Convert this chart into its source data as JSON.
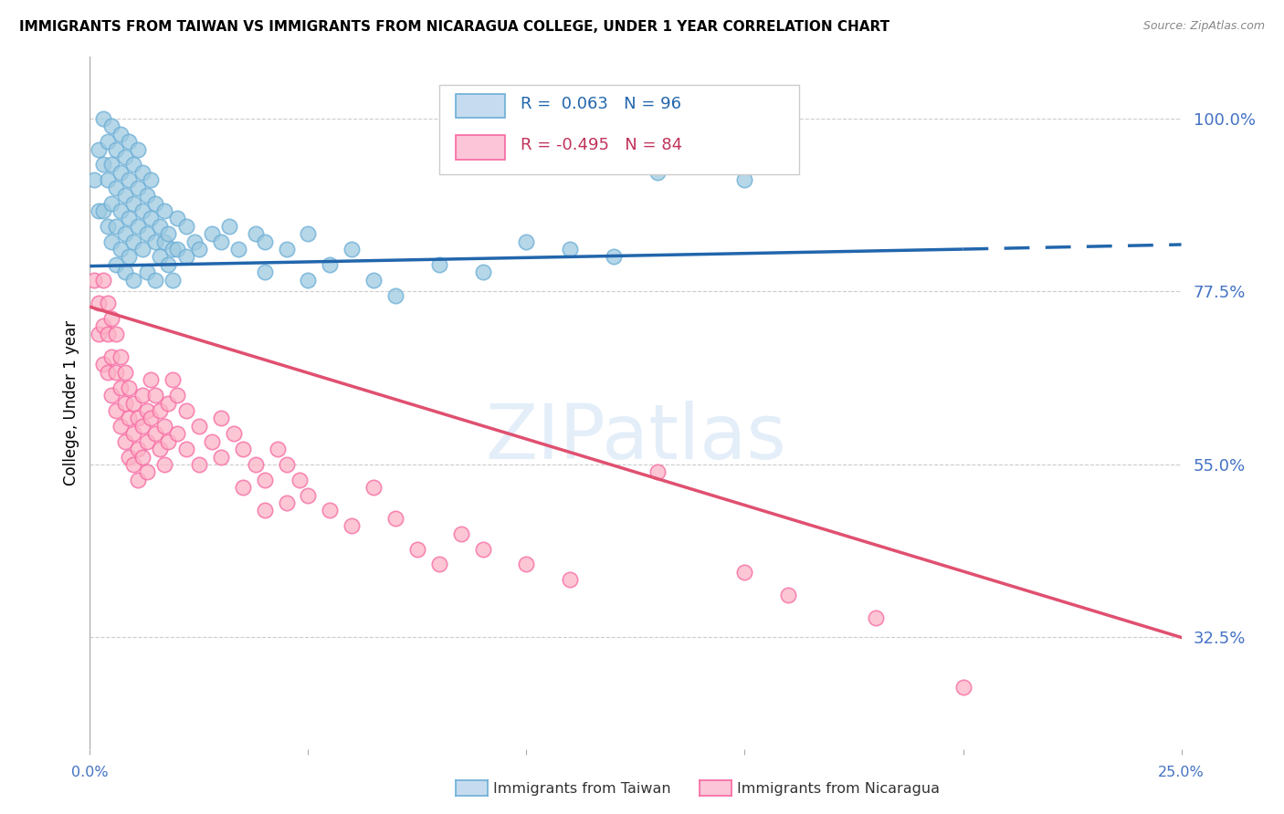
{
  "title": "IMMIGRANTS FROM TAIWAN VS IMMIGRANTS FROM NICARAGUA COLLEGE, UNDER 1 YEAR CORRELATION CHART",
  "source": "Source: ZipAtlas.com",
  "ylabel": "College, Under 1 year",
  "yticks": [
    0.325,
    0.55,
    0.775,
    1.0
  ],
  "ytick_labels": [
    "32.5%",
    "55.0%",
    "77.5%",
    "100.0%"
  ],
  "xmin": 0.0,
  "xmax": 0.25,
  "ymin": 0.18,
  "ymax": 1.08,
  "watermark": "ZIPatlas",
  "taiwan_color": "#9ecae1",
  "taiwan_edge_color": "#6baed6",
  "nicaragua_color": "#fbb4c7",
  "nicaragua_edge_color": "#f768a1",
  "taiwan_line_color": "#2166ac",
  "nicaragua_line_color": "#e05070",
  "taiwan_scatter": [
    [
      0.001,
      0.92
    ],
    [
      0.002,
      0.96
    ],
    [
      0.002,
      0.88
    ],
    [
      0.003,
      1.0
    ],
    [
      0.003,
      0.94
    ],
    [
      0.003,
      0.88
    ],
    [
      0.004,
      0.97
    ],
    [
      0.004,
      0.92
    ],
    [
      0.004,
      0.86
    ],
    [
      0.005,
      0.99
    ],
    [
      0.005,
      0.94
    ],
    [
      0.005,
      0.89
    ],
    [
      0.005,
      0.84
    ],
    [
      0.006,
      0.96
    ],
    [
      0.006,
      0.91
    ],
    [
      0.006,
      0.86
    ],
    [
      0.006,
      0.81
    ],
    [
      0.007,
      0.98
    ],
    [
      0.007,
      0.93
    ],
    [
      0.007,
      0.88
    ],
    [
      0.007,
      0.83
    ],
    [
      0.008,
      0.95
    ],
    [
      0.008,
      0.9
    ],
    [
      0.008,
      0.85
    ],
    [
      0.008,
      0.8
    ],
    [
      0.009,
      0.97
    ],
    [
      0.009,
      0.92
    ],
    [
      0.009,
      0.87
    ],
    [
      0.009,
      0.82
    ],
    [
      0.01,
      0.94
    ],
    [
      0.01,
      0.89
    ],
    [
      0.01,
      0.84
    ],
    [
      0.01,
      0.79
    ],
    [
      0.011,
      0.96
    ],
    [
      0.011,
      0.91
    ],
    [
      0.011,
      0.86
    ],
    [
      0.012,
      0.93
    ],
    [
      0.012,
      0.88
    ],
    [
      0.012,
      0.83
    ],
    [
      0.013,
      0.9
    ],
    [
      0.013,
      0.85
    ],
    [
      0.013,
      0.8
    ],
    [
      0.014,
      0.92
    ],
    [
      0.014,
      0.87
    ],
    [
      0.015,
      0.89
    ],
    [
      0.015,
      0.84
    ],
    [
      0.015,
      0.79
    ],
    [
      0.016,
      0.86
    ],
    [
      0.016,
      0.82
    ],
    [
      0.017,
      0.88
    ],
    [
      0.017,
      0.84
    ],
    [
      0.018,
      0.85
    ],
    [
      0.018,
      0.81
    ],
    [
      0.019,
      0.83
    ],
    [
      0.019,
      0.79
    ],
    [
      0.02,
      0.87
    ],
    [
      0.02,
      0.83
    ],
    [
      0.022,
      0.86
    ],
    [
      0.022,
      0.82
    ],
    [
      0.024,
      0.84
    ],
    [
      0.025,
      0.83
    ],
    [
      0.028,
      0.85
    ],
    [
      0.03,
      0.84
    ],
    [
      0.032,
      0.86
    ],
    [
      0.034,
      0.83
    ],
    [
      0.038,
      0.85
    ],
    [
      0.04,
      0.84
    ],
    [
      0.04,
      0.8
    ],
    [
      0.045,
      0.83
    ],
    [
      0.05,
      0.85
    ],
    [
      0.05,
      0.79
    ],
    [
      0.055,
      0.81
    ],
    [
      0.06,
      0.83
    ],
    [
      0.065,
      0.79
    ],
    [
      0.07,
      0.77
    ],
    [
      0.08,
      0.81
    ],
    [
      0.09,
      0.8
    ],
    [
      0.1,
      0.84
    ],
    [
      0.11,
      0.83
    ],
    [
      0.12,
      0.82
    ],
    [
      0.13,
      0.93
    ],
    [
      0.15,
      0.92
    ]
  ],
  "nicaragua_scatter": [
    [
      0.001,
      0.79
    ],
    [
      0.002,
      0.76
    ],
    [
      0.002,
      0.72
    ],
    [
      0.003,
      0.79
    ],
    [
      0.003,
      0.73
    ],
    [
      0.003,
      0.68
    ],
    [
      0.004,
      0.76
    ],
    [
      0.004,
      0.72
    ],
    [
      0.004,
      0.67
    ],
    [
      0.005,
      0.74
    ],
    [
      0.005,
      0.69
    ],
    [
      0.005,
      0.64
    ],
    [
      0.006,
      0.72
    ],
    [
      0.006,
      0.67
    ],
    [
      0.006,
      0.62
    ],
    [
      0.007,
      0.69
    ],
    [
      0.007,
      0.65
    ],
    [
      0.007,
      0.6
    ],
    [
      0.008,
      0.67
    ],
    [
      0.008,
      0.63
    ],
    [
      0.008,
      0.58
    ],
    [
      0.009,
      0.65
    ],
    [
      0.009,
      0.61
    ],
    [
      0.009,
      0.56
    ],
    [
      0.01,
      0.63
    ],
    [
      0.01,
      0.59
    ],
    [
      0.01,
      0.55
    ],
    [
      0.011,
      0.61
    ],
    [
      0.011,
      0.57
    ],
    [
      0.011,
      0.53
    ],
    [
      0.012,
      0.64
    ],
    [
      0.012,
      0.6
    ],
    [
      0.012,
      0.56
    ],
    [
      0.013,
      0.62
    ],
    [
      0.013,
      0.58
    ],
    [
      0.013,
      0.54
    ],
    [
      0.014,
      0.66
    ],
    [
      0.014,
      0.61
    ],
    [
      0.015,
      0.64
    ],
    [
      0.015,
      0.59
    ],
    [
      0.016,
      0.62
    ],
    [
      0.016,
      0.57
    ],
    [
      0.017,
      0.6
    ],
    [
      0.017,
      0.55
    ],
    [
      0.018,
      0.63
    ],
    [
      0.018,
      0.58
    ],
    [
      0.019,
      0.66
    ],
    [
      0.02,
      0.64
    ],
    [
      0.02,
      0.59
    ],
    [
      0.022,
      0.62
    ],
    [
      0.022,
      0.57
    ],
    [
      0.025,
      0.6
    ],
    [
      0.025,
      0.55
    ],
    [
      0.028,
      0.58
    ],
    [
      0.03,
      0.61
    ],
    [
      0.03,
      0.56
    ],
    [
      0.033,
      0.59
    ],
    [
      0.035,
      0.57
    ],
    [
      0.035,
      0.52
    ],
    [
      0.038,
      0.55
    ],
    [
      0.04,
      0.53
    ],
    [
      0.04,
      0.49
    ],
    [
      0.043,
      0.57
    ],
    [
      0.045,
      0.55
    ],
    [
      0.045,
      0.5
    ],
    [
      0.048,
      0.53
    ],
    [
      0.05,
      0.51
    ],
    [
      0.055,
      0.49
    ],
    [
      0.06,
      0.47
    ],
    [
      0.065,
      0.52
    ],
    [
      0.07,
      0.48
    ],
    [
      0.075,
      0.44
    ],
    [
      0.08,
      0.42
    ],
    [
      0.085,
      0.46
    ],
    [
      0.09,
      0.44
    ],
    [
      0.1,
      0.42
    ],
    [
      0.11,
      0.4
    ],
    [
      0.13,
      0.54
    ],
    [
      0.15,
      0.41
    ],
    [
      0.16,
      0.38
    ],
    [
      0.18,
      0.35
    ],
    [
      0.2,
      0.26
    ]
  ],
  "taiwan_trendline_solid": [
    [
      0.0,
      0.808
    ],
    [
      0.2,
      0.83
    ]
  ],
  "taiwan_trendline_dashed": [
    [
      0.2,
      0.83
    ],
    [
      0.25,
      0.836
    ]
  ],
  "nicaragua_trendline": [
    [
      0.0,
      0.755
    ],
    [
      0.25,
      0.325
    ]
  ]
}
